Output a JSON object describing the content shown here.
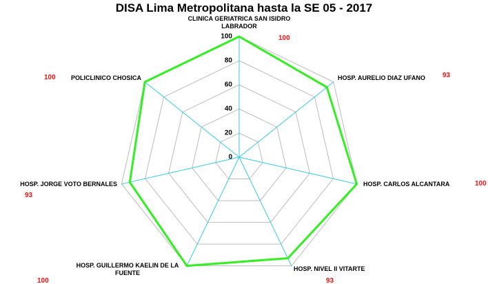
{
  "chart_data": {
    "type": "radar",
    "title": "DISA Lima Metropolitana hasta la SE 05 - 2017",
    "categories": [
      "CLINICA GERIATRICA SAN ISIDRO LABRADOR",
      "HOSP. AURELIO DIAZ UFANO",
      "HOSP. CARLOS ALCANTARA",
      "HOSP. NIVEL II VITARTE",
      "HOSP. GUILLERMO KAELIN DE LA FUENTE",
      "HOSP. JORGE VOTO BERNALES",
      "POLICLINICO CHOSICA"
    ],
    "values": [
      100,
      93,
      100,
      93,
      100,
      93,
      100
    ],
    "color": "#33ee22",
    "spoke_color": "#33c8e8",
    "value_label_color": "#ee1111",
    "ylim": [
      0,
      100
    ],
    "yticks": [
      0,
      20,
      40,
      60,
      80,
      100
    ],
    "grid": true
  }
}
